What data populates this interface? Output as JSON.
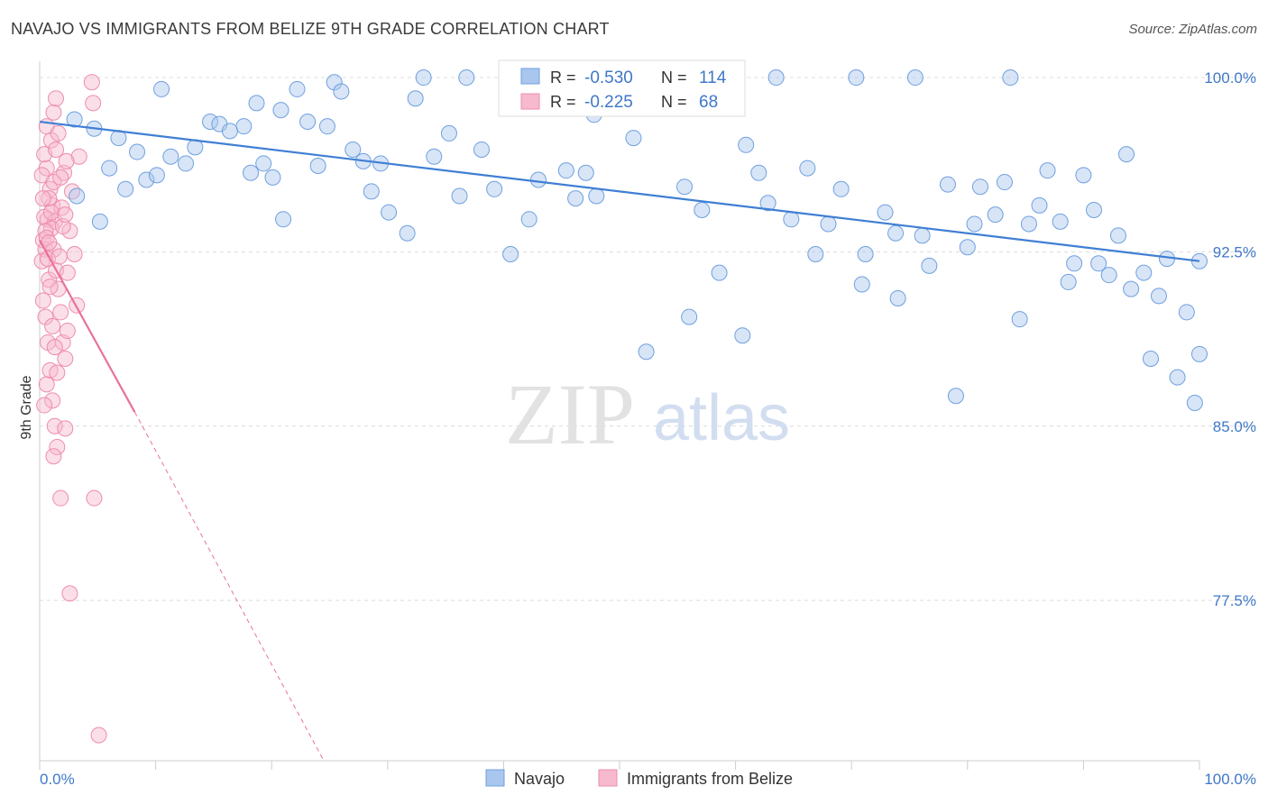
{
  "header": {
    "title": "NAVAJO VS IMMIGRANTS FROM BELIZE 9TH GRADE CORRELATION CHART",
    "source": "Source: ZipAtlas.com"
  },
  "watermark": {
    "zip": "ZIP",
    "atlas": "atlas"
  },
  "legend_box": {
    "rows": [
      {
        "r_label": "R = ",
        "r_value": "-0.530",
        "n_label": "N = ",
        "n_value": "114",
        "color": "#6fa0df"
      },
      {
        "r_label": "R = ",
        "r_value": "-0.225",
        "n_label": "N = ",
        "n_value": "68",
        "color": "#f08cb0"
      }
    ]
  },
  "colors": {
    "navajo_fill": "#a9c6ee",
    "navajo_stroke": "#6fa0df",
    "navajo_line": "#3f7fd4",
    "belize_fill": "#f7b9cd",
    "belize_stroke": "#ee8cae",
    "belize_line": "#e8719b",
    "tick_label": "#3f78c8",
    "grid": "#dcdcdc"
  },
  "chart_data": {
    "type": "scatter",
    "title": "NAVAJO VS IMMIGRANTS FROM BELIZE 9TH GRADE CORRELATION CHART",
    "xlabel": "",
    "ylabel": "9th Grade",
    "xlim": [
      0,
      100
    ],
    "ylim": [
      70.6,
      100.7
    ],
    "x_tick_labels": [
      "0.0%",
      "100.0%"
    ],
    "y_ticks": [
      {
        "value": 100.0,
        "label": "100.0%"
      },
      {
        "value": 92.5,
        "label": "92.5%"
      },
      {
        "value": 85.0,
        "label": "85.0%"
      },
      {
        "value": 77.5,
        "label": "77.5%"
      }
    ],
    "grid": true,
    "legend_position": "bottom-center",
    "series": [
      {
        "name": "Navajo",
        "r": -0.53,
        "n": 114,
        "trend": {
          "x": [
            0,
            100
          ],
          "y": [
            98.1,
            92.1
          ],
          "dashed_extension": false
        },
        "points": [
          [
            3,
            98.2
          ],
          [
            4.7,
            97.8
          ],
          [
            6.8,
            97.4
          ],
          [
            8.4,
            96.8
          ],
          [
            9.2,
            95.6
          ],
          [
            10.1,
            95.8
          ],
          [
            10.5,
            99.5
          ],
          [
            12.6,
            96.3
          ],
          [
            14.7,
            98.1
          ],
          [
            15.5,
            98.0
          ],
          [
            17.6,
            97.9
          ],
          [
            18.7,
            98.9
          ],
          [
            19.3,
            96.3
          ],
          [
            20.1,
            95.7
          ],
          [
            21.0,
            93.9
          ],
          [
            22.2,
            99.5
          ],
          [
            23.1,
            98.1
          ],
          [
            24.0,
            96.2
          ],
          [
            25.4,
            99.8
          ],
          [
            26.0,
            99.4
          ],
          [
            27.0,
            96.9
          ],
          [
            27.9,
            96.4
          ],
          [
            29.4,
            96.3
          ],
          [
            30.1,
            94.2
          ],
          [
            31.7,
            93.3
          ],
          [
            33.1,
            100.0
          ],
          [
            34.0,
            96.6
          ],
          [
            35.3,
            97.6
          ],
          [
            36.8,
            100.0
          ],
          [
            38.1,
            96.9
          ],
          [
            39.2,
            95.2
          ],
          [
            40.6,
            92.4
          ],
          [
            41.3,
            100.0
          ],
          [
            43.0,
            95.6
          ],
          [
            44.1,
            100.0
          ],
          [
            45.4,
            96.0
          ],
          [
            46.2,
            94.8
          ],
          [
            47.1,
            95.9
          ],
          [
            48.0,
            94.9
          ],
          [
            49.3,
            100.0
          ],
          [
            51.2,
            97.4
          ],
          [
            53.8,
            100.0
          ],
          [
            55.6,
            95.3
          ],
          [
            57.1,
            94.3
          ],
          [
            58.0,
            98.7
          ],
          [
            59.2,
            100.0
          ],
          [
            60.9,
            97.1
          ],
          [
            62.0,
            95.9
          ],
          [
            63.5,
            100.0
          ],
          [
            64.8,
            93.9
          ],
          [
            66.2,
            96.1
          ],
          [
            68.0,
            93.7
          ],
          [
            69.1,
            95.2
          ],
          [
            70.4,
            100.0
          ],
          [
            71.2,
            92.4
          ],
          [
            72.9,
            94.2
          ],
          [
            74.0,
            90.5
          ],
          [
            75.5,
            100.0
          ],
          [
            76.7,
            91.9
          ],
          [
            78.3,
            95.4
          ],
          [
            79.0,
            86.3
          ],
          [
            80.6,
            93.7
          ],
          [
            81.1,
            95.3
          ],
          [
            82.4,
            94.1
          ],
          [
            83.7,
            100.0
          ],
          [
            84.5,
            89.6
          ],
          [
            85.3,
            93.7
          ],
          [
            86.9,
            96.0
          ],
          [
            88.0,
            93.8
          ],
          [
            89.2,
            92.0
          ],
          [
            90.0,
            95.8
          ],
          [
            91.3,
            92.0
          ],
          [
            92.2,
            91.5
          ],
          [
            93.0,
            93.2
          ],
          [
            94.1,
            90.9
          ],
          [
            95.2,
            91.6
          ],
          [
            95.8,
            87.9
          ],
          [
            96.5,
            90.6
          ],
          [
            97.2,
            92.2
          ],
          [
            98.1,
            87.1
          ],
          [
            98.9,
            89.9
          ],
          [
            99.6,
            86.0
          ],
          [
            100.0,
            92.1
          ],
          [
            100.0,
            88.1
          ],
          [
            3.2,
            94.9
          ],
          [
            5.2,
            93.8
          ],
          [
            6.0,
            96.1
          ],
          [
            7.4,
            95.2
          ],
          [
            11.3,
            96.6
          ],
          [
            13.4,
            97.0
          ],
          [
            16.4,
            97.7
          ],
          [
            18.2,
            95.9
          ],
          [
            20.8,
            98.6
          ],
          [
            24.8,
            97.9
          ],
          [
            28.6,
            95.1
          ],
          [
            32.4,
            99.1
          ],
          [
            36.2,
            94.9
          ],
          [
            42.2,
            93.9
          ],
          [
            47.8,
            98.4
          ],
          [
            52.3,
            88.2
          ],
          [
            56.0,
            89.7
          ],
          [
            58.6,
            91.6
          ],
          [
            60.6,
            88.9
          ],
          [
            62.8,
            94.6
          ],
          [
            66.9,
            92.4
          ],
          [
            70.9,
            91.1
          ],
          [
            73.8,
            93.3
          ],
          [
            76.1,
            93.2
          ],
          [
            80.0,
            92.7
          ],
          [
            83.2,
            95.5
          ],
          [
            86.2,
            94.5
          ],
          [
            88.7,
            91.2
          ],
          [
            90.9,
            94.3
          ],
          [
            93.7,
            96.7
          ]
        ]
      },
      {
        "name": "Immigrants from Belize",
        "r": -0.225,
        "n": 68,
        "trend": {
          "x": [
            0,
            8.2
          ],
          "y": [
            93.0,
            85.6
          ],
          "dashed_to": {
            "x": 24.5,
            "y": 70.6
          }
        },
        "points": [
          [
            0.3,
            93.0
          ],
          [
            0.5,
            92.6
          ],
          [
            0.7,
            93.9
          ],
          [
            0.9,
            95.2
          ],
          [
            1.1,
            94.5
          ],
          [
            1.3,
            93.8
          ],
          [
            0.2,
            92.1
          ],
          [
            0.4,
            94.0
          ],
          [
            0.6,
            96.1
          ],
          [
            0.8,
            91.3
          ],
          [
            1.0,
            97.3
          ],
          [
            1.2,
            98.5
          ],
          [
            1.4,
            99.1
          ],
          [
            0.3,
            90.4
          ],
          [
            0.5,
            89.7
          ],
          [
            0.7,
            88.6
          ],
          [
            0.9,
            87.4
          ],
          [
            1.1,
            86.1
          ],
          [
            1.3,
            85.0
          ],
          [
            1.5,
            84.1
          ],
          [
            0.2,
            95.8
          ],
          [
            0.4,
            96.7
          ],
          [
            0.6,
            97.9
          ],
          [
            0.8,
            94.8
          ],
          [
            1.0,
            93.5
          ],
          [
            1.2,
            92.6
          ],
          [
            1.4,
            91.7
          ],
          [
            1.6,
            90.9
          ],
          [
            1.8,
            89.9
          ],
          [
            2.0,
            88.6
          ],
          [
            2.2,
            87.9
          ],
          [
            2.4,
            91.6
          ],
          [
            2.6,
            93.4
          ],
          [
            2.8,
            95.1
          ],
          [
            3.0,
            92.4
          ],
          [
            3.2,
            90.2
          ],
          [
            3.4,
            96.6
          ],
          [
            4.6,
            98.9
          ],
          [
            4.5,
            99.8
          ],
          [
            0.3,
            94.8
          ],
          [
            0.5,
            93.4
          ],
          [
            0.7,
            92.2
          ],
          [
            0.9,
            91.0
          ],
          [
            1.1,
            89.3
          ],
          [
            1.3,
            88.4
          ],
          [
            1.5,
            87.3
          ],
          [
            1.7,
            92.3
          ],
          [
            1.9,
            94.4
          ],
          [
            2.1,
            95.9
          ],
          [
            2.3,
            96.4
          ],
          [
            0.6,
            93.1
          ],
          [
            0.8,
            92.9
          ],
          [
            1.0,
            94.2
          ],
          [
            1.2,
            95.5
          ],
          [
            1.4,
            96.9
          ],
          [
            1.6,
            97.6
          ],
          [
            1.8,
            95.7
          ],
          [
            2.0,
            93.6
          ],
          [
            2.2,
            94.1
          ],
          [
            2.4,
            89.1
          ],
          [
            1.8,
            81.9
          ],
          [
            4.7,
            81.9
          ],
          [
            2.6,
            77.8
          ],
          [
            5.1,
            71.7
          ],
          [
            0.4,
            85.9
          ],
          [
            0.6,
            86.8
          ],
          [
            1.2,
            83.7
          ],
          [
            2.2,
            84.9
          ]
        ]
      }
    ]
  }
}
